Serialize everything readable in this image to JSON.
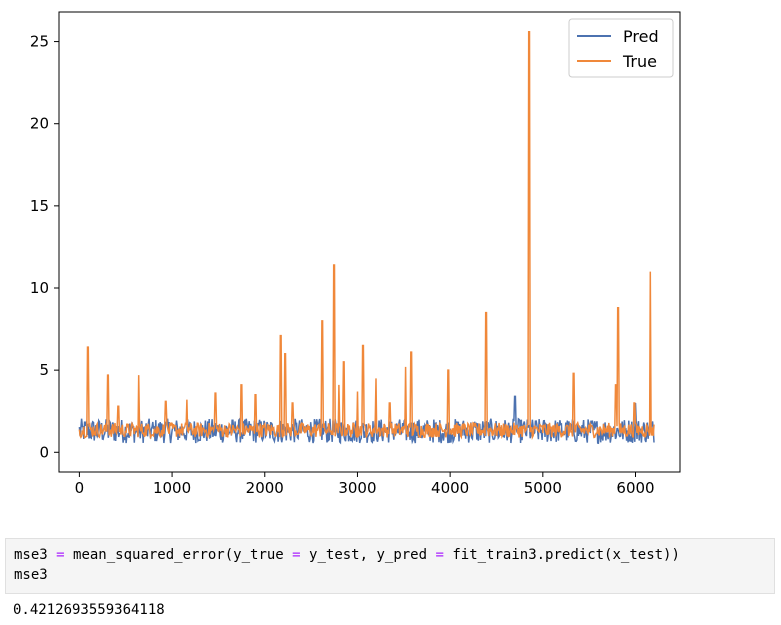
{
  "chart_data": {
    "type": "line",
    "title": "",
    "xlabel": "",
    "ylabel": "",
    "xlim": [
      -220,
      6480
    ],
    "ylim": [
      -1.2,
      26.8
    ],
    "xticks": [
      0,
      1000,
      2000,
      3000,
      4000,
      5000,
      6000
    ],
    "yticks": [
      0,
      5,
      10,
      15,
      20,
      25
    ],
    "xtick_labels": [
      "0",
      "1000",
      "2000",
      "3000",
      "4000",
      "5000",
      "6000"
    ],
    "ytick_labels": [
      "0",
      "5",
      "10",
      "15",
      "20",
      "25"
    ],
    "legend_position": "top-right",
    "grid": false,
    "n_points": 6200,
    "series": [
      {
        "name": "Pred",
        "color": "#4c72b0",
        "baseline_range": [
          0.3,
          2.6
        ],
        "notable_peaks": [
          [
            4700,
            3.4
          ],
          [
            6000,
            3.0
          ]
        ]
      },
      {
        "name": "True",
        "color": "#f0883a",
        "baseline_range": [
          0.6,
          2.0
        ],
        "spikes": [
          [
            90,
            6.4
          ],
          [
            310,
            4.7
          ],
          [
            420,
            2.8
          ],
          [
            640,
            4.7
          ],
          [
            930,
            3.1
          ],
          [
            1160,
            3.2
          ],
          [
            1470,
            3.6
          ],
          [
            1750,
            4.1
          ],
          [
            1900,
            3.5
          ],
          [
            2170,
            7.1
          ],
          [
            2220,
            6.0
          ],
          [
            2300,
            3.0
          ],
          [
            2620,
            8.0
          ],
          [
            2750,
            11.4
          ],
          [
            2800,
            4.1
          ],
          [
            2850,
            5.5
          ],
          [
            3000,
            3.7
          ],
          [
            3060,
            6.5
          ],
          [
            3200,
            4.5
          ],
          [
            3350,
            3.0
          ],
          [
            3520,
            5.2
          ],
          [
            3580,
            6.1
          ],
          [
            3980,
            5.0
          ],
          [
            4390,
            8.5
          ],
          [
            4850,
            25.6
          ],
          [
            5330,
            4.8
          ],
          [
            5810,
            8.8
          ],
          [
            5790,
            4.1
          ],
          [
            5990,
            3.0
          ],
          [
            6160,
            11.0
          ]
        ]
      }
    ]
  },
  "code_cell": {
    "line1": {
      "p1": "mse3 ",
      "op1": "=",
      "p2": " mean_squared_error(y_true ",
      "op2": "=",
      "p3": " y_test, y_pred ",
      "op3": "=",
      "p4": " fit_train3.predict(x_test))"
    },
    "line2": "mse3"
  },
  "output_text": "0.4212693559364118"
}
